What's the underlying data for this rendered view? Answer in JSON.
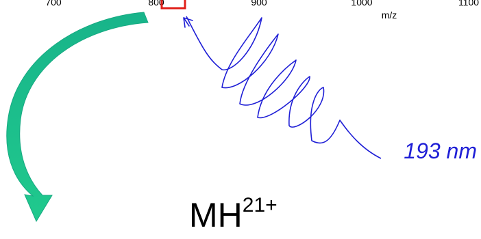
{
  "spectrum_axis": {
    "tick_labels": [
      "700",
      "800",
      "900",
      "1000",
      "1100"
    ],
    "xlabel": "m/z"
  },
  "laser": {
    "wavelength_label": "193 nm",
    "color": "#1f1fd6"
  },
  "ion": {
    "base": "MH",
    "charge": "21+"
  },
  "colors": {
    "selection_box": "#e0201a",
    "curved_arrow": "#18b48a"
  }
}
